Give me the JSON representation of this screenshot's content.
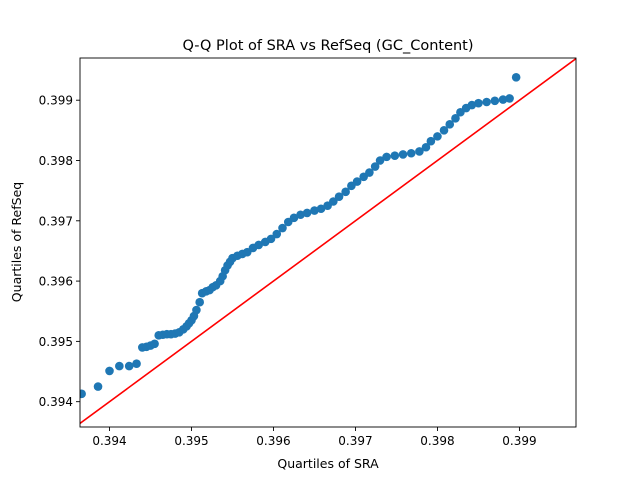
{
  "chart_data": {
    "type": "scatter",
    "title": "Q-Q Plot of SRA vs RefSeq (GC_Content)",
    "xlabel": "Quartiles of SRA",
    "ylabel": "Quartiles of RefSeq",
    "xlim": [
      0.39364,
      0.39969
    ],
    "ylim": [
      0.39358,
      0.3997
    ],
    "xticks": [
      "0.394",
      "0.395",
      "0.396",
      "0.397",
      "0.398",
      "0.399"
    ],
    "xtick_values": [
      0.394,
      0.395,
      0.396,
      0.397,
      0.398,
      0.399
    ],
    "yticks": [
      "0.394",
      "0.395",
      "0.396",
      "0.397",
      "0.398",
      "0.399"
    ],
    "ytick_values": [
      0.394,
      0.395,
      0.396,
      0.397,
      0.398,
      0.399
    ],
    "grid": false,
    "point_color": "#1f77b4",
    "reference_line_color": "#ff0000",
    "reference_line": "y = x",
    "points": [
      [
        0.39366,
        0.39413
      ],
      [
        0.39386,
        0.39425
      ],
      [
        0.394,
        0.39451
      ],
      [
        0.39412,
        0.39459
      ],
      [
        0.39424,
        0.39459
      ],
      [
        0.39433,
        0.39463
      ],
      [
        0.3944,
        0.3949
      ],
      [
        0.39445,
        0.39491
      ],
      [
        0.3945,
        0.39493
      ],
      [
        0.39455,
        0.39496
      ],
      [
        0.3946,
        0.3951
      ],
      [
        0.39465,
        0.39511
      ],
      [
        0.3947,
        0.39512
      ],
      [
        0.39475,
        0.39512
      ],
      [
        0.3948,
        0.39513
      ],
      [
        0.39485,
        0.39515
      ],
      [
        0.3949,
        0.3952
      ],
      [
        0.39494,
        0.39525
      ],
      [
        0.39497,
        0.3953
      ],
      [
        0.395,
        0.39535
      ],
      [
        0.39503,
        0.39542
      ],
      [
        0.39506,
        0.39552
      ],
      [
        0.3951,
        0.39565
      ],
      [
        0.39513,
        0.3958
      ],
      [
        0.39518,
        0.39583
      ],
      [
        0.39522,
        0.39585
      ],
      [
        0.39526,
        0.3959
      ],
      [
        0.3953,
        0.39593
      ],
      [
        0.39535,
        0.396
      ],
      [
        0.39538,
        0.39608
      ],
      [
        0.39541,
        0.39618
      ],
      [
        0.39544,
        0.39626
      ],
      [
        0.39547,
        0.39632
      ],
      [
        0.3955,
        0.39638
      ],
      [
        0.39556,
        0.39642
      ],
      [
        0.39562,
        0.39645
      ],
      [
        0.39568,
        0.39648
      ],
      [
        0.39575,
        0.39655
      ],
      [
        0.39582,
        0.3966
      ],
      [
        0.3959,
        0.39665
      ],
      [
        0.39597,
        0.3967
      ],
      [
        0.39604,
        0.39678
      ],
      [
        0.39611,
        0.39688
      ],
      [
        0.39618,
        0.39698
      ],
      [
        0.39625,
        0.39705
      ],
      [
        0.39633,
        0.3971
      ],
      [
        0.39641,
        0.39713
      ],
      [
        0.3965,
        0.39717
      ],
      [
        0.39658,
        0.3972
      ],
      [
        0.39666,
        0.39725
      ],
      [
        0.39673,
        0.39732
      ],
      [
        0.3968,
        0.3974
      ],
      [
        0.39688,
        0.39748
      ],
      [
        0.39695,
        0.39758
      ],
      [
        0.39702,
        0.39765
      ],
      [
        0.3971,
        0.39773
      ],
      [
        0.39717,
        0.3978
      ],
      [
        0.39724,
        0.3979
      ],
      [
        0.3973,
        0.398
      ],
      [
        0.39738,
        0.39806
      ],
      [
        0.39748,
        0.39808
      ],
      [
        0.39758,
        0.3981
      ],
      [
        0.39768,
        0.39812
      ],
      [
        0.39778,
        0.39815
      ],
      [
        0.39786,
        0.39822
      ],
      [
        0.39792,
        0.39832
      ],
      [
        0.398,
        0.3984
      ],
      [
        0.39808,
        0.3985
      ],
      [
        0.39815,
        0.3986
      ],
      [
        0.39822,
        0.3987
      ],
      [
        0.39828,
        0.3988
      ],
      [
        0.39835,
        0.39887
      ],
      [
        0.39842,
        0.39892
      ],
      [
        0.3985,
        0.39895
      ],
      [
        0.3986,
        0.39897
      ],
      [
        0.3987,
        0.39899
      ],
      [
        0.3988,
        0.39901
      ],
      [
        0.39888,
        0.39903
      ],
      [
        0.39896,
        0.39938
      ]
    ]
  }
}
